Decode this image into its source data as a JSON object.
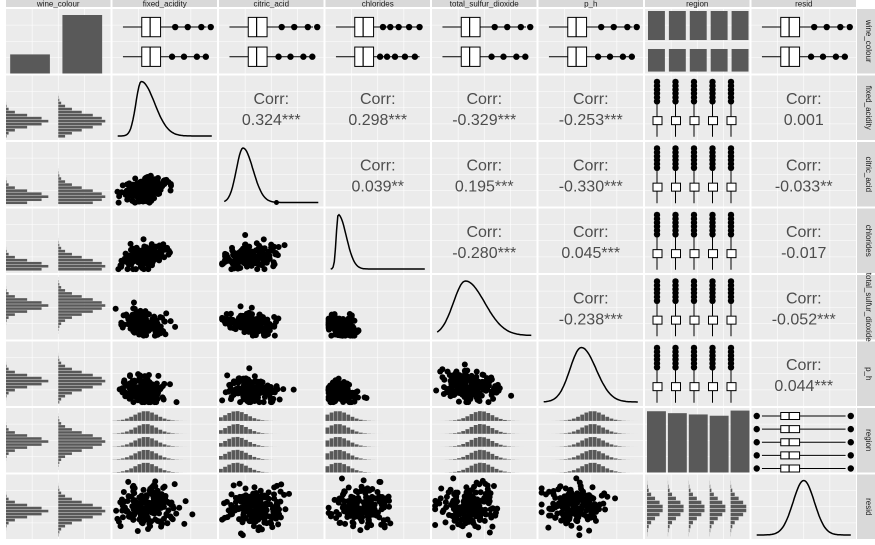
{
  "chart_data": {
    "type": "pairs_matrix",
    "variables": [
      "wine_colour",
      "fixed_acidity",
      "citric_acid",
      "chlorides",
      "total_sulfur_dioxide",
      "p_h",
      "region",
      "resid"
    ],
    "column_strip_labels": [
      "wine_colour",
      "fixed_acidity",
      "citric_acid",
      "chlorides",
      "total_sulfur_dioxide",
      "p_h",
      "region",
      "resid"
    ],
    "row_strip_labels": [
      "wine_colour",
      "fixed_acidity",
      "citric_acid",
      "chlorides",
      "total_sulfur_dioxide",
      "p_h",
      "region",
      "resid"
    ],
    "corr_label": "Corr:",
    "correlations": [
      {
        "row": "fixed_acidity",
        "col": "citric_acid",
        "value": "0.324***"
      },
      {
        "row": "fixed_acidity",
        "col": "chlorides",
        "value": "0.298***"
      },
      {
        "row": "fixed_acidity",
        "col": "total_sulfur_dioxide",
        "value": "-0.329***"
      },
      {
        "row": "fixed_acidity",
        "col": "p_h",
        "value": "-0.253***"
      },
      {
        "row": "fixed_acidity",
        "col": "resid",
        "value": "0.001"
      },
      {
        "row": "citric_acid",
        "col": "chlorides",
        "value": "0.039**"
      },
      {
        "row": "citric_acid",
        "col": "total_sulfur_dioxide",
        "value": "0.195***"
      },
      {
        "row": "citric_acid",
        "col": "p_h",
        "value": "-0.330***"
      },
      {
        "row": "citric_acid",
        "col": "resid",
        "value": "-0.033**"
      },
      {
        "row": "chlorides",
        "col": "total_sulfur_dioxide",
        "value": "-0.280***"
      },
      {
        "row": "chlorides",
        "col": "p_h",
        "value": "0.045***"
      },
      {
        "row": "chlorides",
        "col": "resid",
        "value": "-0.017"
      },
      {
        "row": "total_sulfur_dioxide",
        "col": "p_h",
        "value": "-0.238***"
      },
      {
        "row": "total_sulfur_dioxide",
        "col": "resid",
        "value": "-0.052***"
      },
      {
        "row": "p_h",
        "col": "resid",
        "value": "0.044***"
      }
    ],
    "wine_colour_counts": [
      1600,
      4900
    ],
    "region_categories": 5,
    "panel_background": "#ebebeb",
    "strip_background": "#d9d9d9",
    "mark_color": "#000000",
    "bar_color": "#595959",
    "grid": true
  }
}
